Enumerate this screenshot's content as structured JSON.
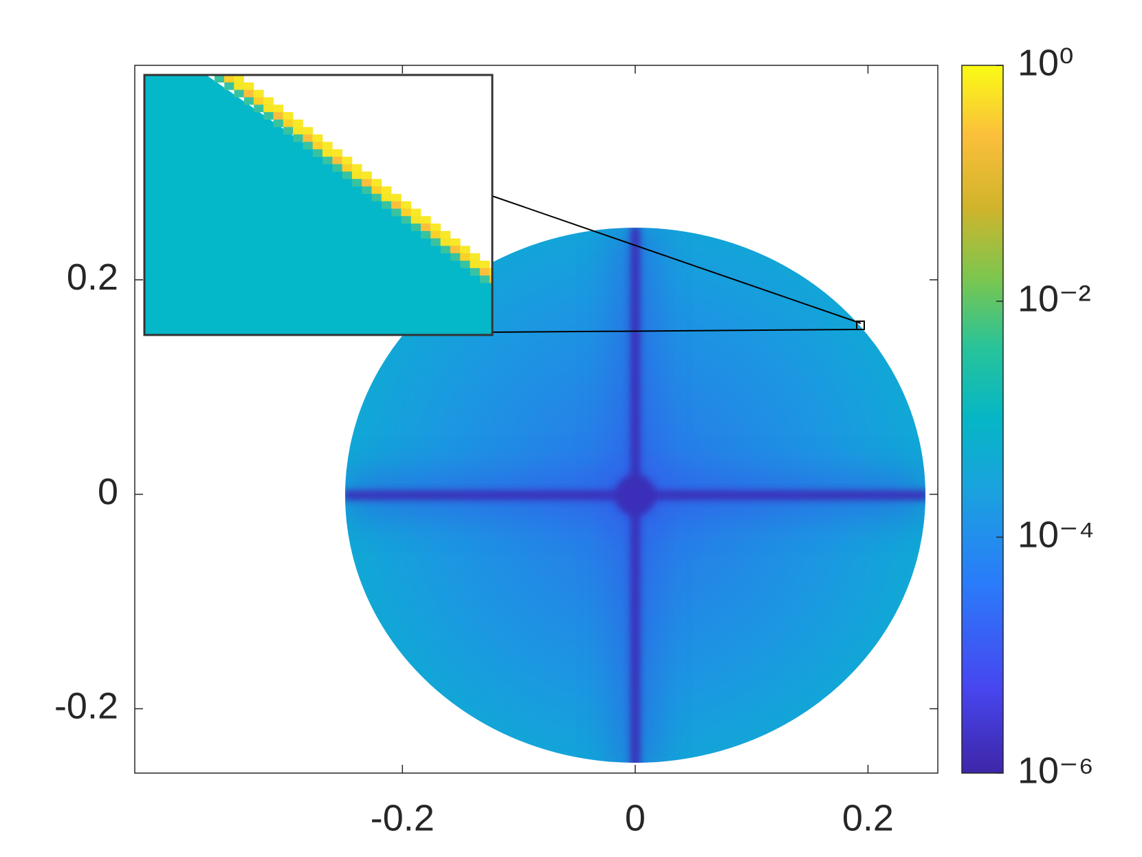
{
  "chart_data": {
    "type": "heatmap",
    "xlim": [
      -0.43,
      0.26
    ],
    "xticks": [
      -0.2,
      0,
      0.2
    ],
    "ylim": [
      -0.26,
      0.4
    ],
    "yticks": [
      -0.2,
      0,
      0.2
    ],
    "colorbar": {
      "scale": "log",
      "colormap": "parula",
      "clim": [
        1e-06,
        1
      ],
      "ticks": [
        {
          "value": 1,
          "label": "10⁰"
        },
        {
          "value": 0.01,
          "label": "10⁻²"
        },
        {
          "value": 0.0001,
          "label": "10⁻⁴"
        },
        {
          "value": 1e-06,
          "label": "10⁻⁶"
        }
      ]
    }
  }
}
